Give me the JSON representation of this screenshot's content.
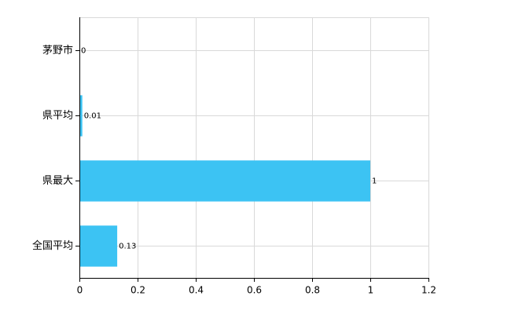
{
  "chart_data": {
    "type": "hbar",
    "categories": [
      "茅野市",
      "県平均",
      "県最大",
      "全国平均"
    ],
    "values": [
      0,
      0.01,
      1,
      0.13
    ],
    "color": "#3cc3f3",
    "xlim": [
      0,
      1.2
    ],
    "xticks": [
      0,
      0.2,
      0.4,
      0.6,
      0.8,
      1,
      1.2
    ],
    "grid": true
  }
}
